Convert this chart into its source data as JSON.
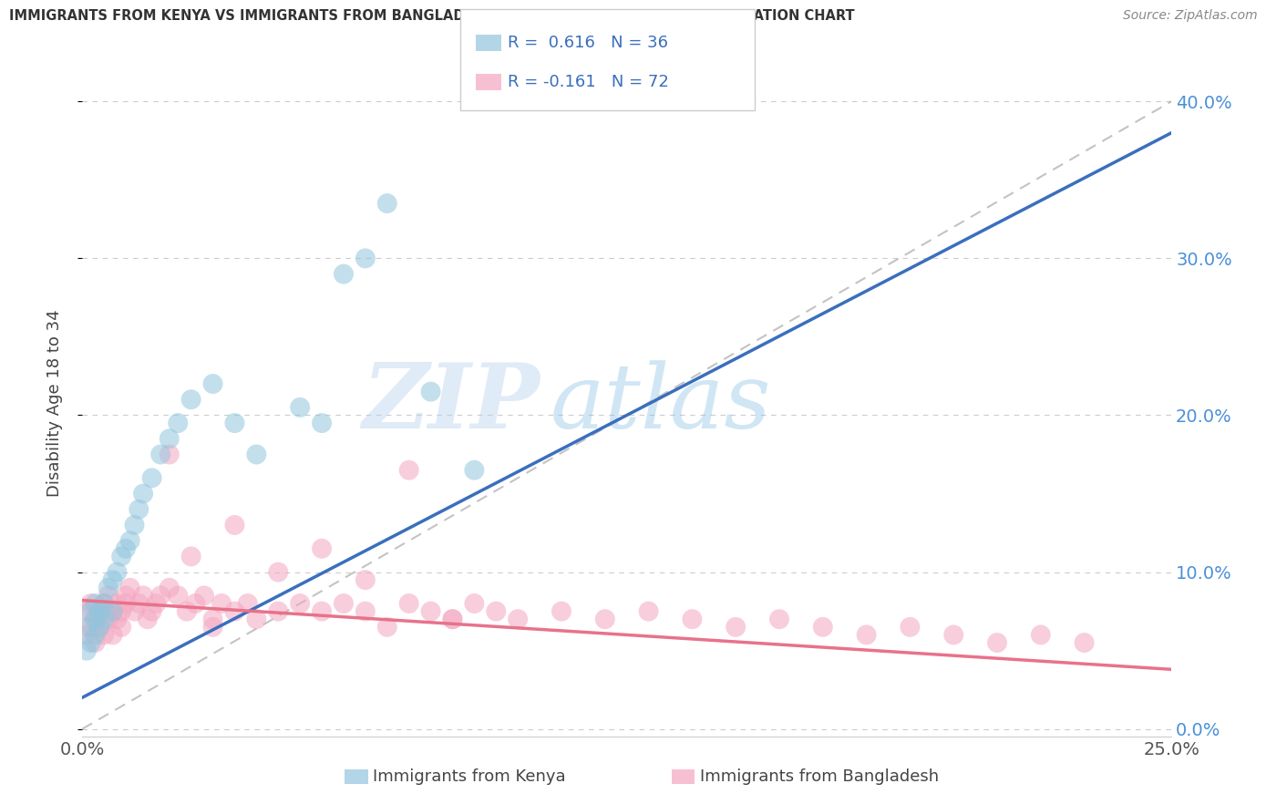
{
  "title": "IMMIGRANTS FROM KENYA VS IMMIGRANTS FROM BANGLADESH DISABILITY AGE 18 TO 34 CORRELATION CHART",
  "source": "Source: ZipAtlas.com",
  "ylabel": "Disability Age 18 to 34",
  "xlabel_kenya": "Immigrants from Kenya",
  "xlabel_bangladesh": "Immigrants from Bangladesh",
  "xlim": [
    0.0,
    0.25
  ],
  "ylim": [
    -0.005,
    0.42
  ],
  "yticks": [
    0.0,
    0.1,
    0.2,
    0.3,
    0.4
  ],
  "xticks": [
    0.0,
    0.25
  ],
  "xtick_labels": [
    "0.0%",
    "25.0%"
  ],
  "R_kenya": 0.616,
  "N_kenya": 36,
  "R_bangladesh": -0.161,
  "N_bangladesh": 72,
  "color_kenya": "#92c5de",
  "color_bangladesh": "#f4a6c0",
  "trend_color_kenya": "#3a6fbd",
  "trend_color_bangladesh": "#e8728a",
  "watermark_zip": "ZIP",
  "watermark_atlas": "atlas",
  "kenya_x": [
    0.001,
    0.001,
    0.002,
    0.002,
    0.003,
    0.003,
    0.003,
    0.004,
    0.004,
    0.005,
    0.005,
    0.006,
    0.007,
    0.007,
    0.008,
    0.009,
    0.01,
    0.011,
    0.012,
    0.013,
    0.014,
    0.016,
    0.018,
    0.02,
    0.022,
    0.025,
    0.03,
    0.035,
    0.04,
    0.05,
    0.055,
    0.06,
    0.065,
    0.07,
    0.08,
    0.09
  ],
  "kenya_y": [
    0.05,
    0.065,
    0.055,
    0.075,
    0.06,
    0.07,
    0.08,
    0.065,
    0.075,
    0.07,
    0.08,
    0.09,
    0.075,
    0.095,
    0.1,
    0.11,
    0.115,
    0.12,
    0.13,
    0.14,
    0.15,
    0.16,
    0.175,
    0.185,
    0.195,
    0.21,
    0.22,
    0.195,
    0.175,
    0.205,
    0.195,
    0.29,
    0.3,
    0.335,
    0.215,
    0.165
  ],
  "bangladesh_x": [
    0.001,
    0.001,
    0.002,
    0.002,
    0.003,
    0.003,
    0.004,
    0.004,
    0.005,
    0.005,
    0.006,
    0.006,
    0.007,
    0.007,
    0.008,
    0.008,
    0.009,
    0.009,
    0.01,
    0.01,
    0.011,
    0.012,
    0.013,
    0.014,
    0.015,
    0.016,
    0.017,
    0.018,
    0.02,
    0.022,
    0.024,
    0.026,
    0.028,
    0.03,
    0.032,
    0.035,
    0.038,
    0.04,
    0.045,
    0.05,
    0.055,
    0.06,
    0.065,
    0.07,
    0.075,
    0.08,
    0.085,
    0.09,
    0.095,
    0.1,
    0.11,
    0.12,
    0.13,
    0.14,
    0.15,
    0.16,
    0.17,
    0.18,
    0.19,
    0.2,
    0.21,
    0.22,
    0.23,
    0.025,
    0.035,
    0.045,
    0.055,
    0.065,
    0.075,
    0.085,
    0.02,
    0.03
  ],
  "bangladesh_y": [
    0.06,
    0.075,
    0.065,
    0.08,
    0.055,
    0.07,
    0.065,
    0.075,
    0.06,
    0.08,
    0.07,
    0.085,
    0.06,
    0.075,
    0.07,
    0.08,
    0.065,
    0.075,
    0.08,
    0.085,
    0.09,
    0.075,
    0.08,
    0.085,
    0.07,
    0.075,
    0.08,
    0.085,
    0.09,
    0.085,
    0.075,
    0.08,
    0.085,
    0.07,
    0.08,
    0.075,
    0.08,
    0.07,
    0.075,
    0.08,
    0.075,
    0.08,
    0.075,
    0.065,
    0.08,
    0.075,
    0.07,
    0.08,
    0.075,
    0.07,
    0.075,
    0.07,
    0.075,
    0.07,
    0.065,
    0.07,
    0.065,
    0.06,
    0.065,
    0.06,
    0.055,
    0.06,
    0.055,
    0.11,
    0.13,
    0.1,
    0.115,
    0.095,
    0.165,
    0.07,
    0.175,
    0.065
  ],
  "ref_line": [
    [
      0.0,
      0.25
    ],
    [
      0.0,
      0.4
    ]
  ],
  "kenya_trend": [
    0.0,
    0.25
  ],
  "kenya_trend_y": [
    0.02,
    0.38
  ],
  "bangladesh_trend": [
    0.0,
    0.25
  ],
  "bangladesh_trend_y": [
    0.082,
    0.038
  ]
}
